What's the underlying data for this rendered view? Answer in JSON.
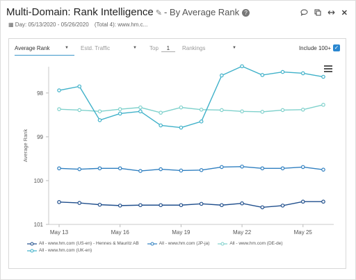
{
  "header": {
    "title": "Multi-Domain: Rank Intelligence",
    "subtitle": "- By Average Rank",
    "day_range": "Day: 05/13/2020 - 05/26/2020",
    "total_info": "(Total 4): www.hm.c..."
  },
  "icons": [
    "pencil-icon",
    "help-icon",
    "comment-icon",
    "copy-icon",
    "expand-icon",
    "close-icon",
    "calendar-icon",
    "chart-menu-icon",
    "checkbox-checked-icon"
  ],
  "controls": {
    "metric_select": "Average Rank",
    "secondary_select": "Estd. Traffic",
    "top_label": "Top",
    "top_value": "1",
    "rankings_select": "Rankings",
    "include_label": "Include 100+"
  },
  "colors": {
    "accent": "#3c97c9",
    "series_dark": "#1f4e8c",
    "series_mid": "#2f7fc0",
    "series_light": "#7fd1cc",
    "series_teal": "#3fb1c9"
  },
  "chart_data": {
    "type": "line",
    "title": "",
    "xlabel": "",
    "ylabel": "Average Rank",
    "x": [
      "May 13",
      "May 14",
      "May 15",
      "May 16",
      "May 17",
      "May 18",
      "May 19",
      "May 20",
      "May 21",
      "May 22",
      "May 23",
      "May 24",
      "May 25",
      "May 26"
    ],
    "x_tick_labels": [
      "May 13",
      "May 16",
      "May 19",
      "May 22",
      "May 25"
    ],
    "y_ticks": [
      98,
      99,
      100,
      101
    ],
    "ylim": [
      101,
      97.4
    ],
    "y_axis_inverted": true,
    "grid": false,
    "legend_position": "bottom",
    "series": [
      {
        "name": "All - www.hm.com (US-en) - Hennes & Mauritz AB",
        "color": "#1f4e8c",
        "values": [
          100.49,
          100.51,
          100.55,
          100.57,
          100.56,
          100.56,
          100.56,
          100.53,
          100.56,
          100.52,
          100.61,
          100.57,
          100.48,
          100.48
        ]
      },
      {
        "name": "All - www.hm.com (JP-ja)",
        "color": "#2f7fc0",
        "values": [
          99.72,
          99.74,
          99.72,
          99.72,
          99.78,
          99.74,
          99.77,
          99.76,
          99.69,
          99.68,
          99.72,
          99.72,
          99.69,
          99.75
        ]
      },
      {
        "name": "All - www.hm.com (DE-de)",
        "color": "#7fd1cc",
        "values": [
          98.37,
          98.39,
          98.42,
          98.37,
          98.33,
          98.45,
          98.33,
          98.38,
          98.39,
          98.42,
          98.43,
          98.39,
          98.38,
          98.27
        ]
      },
      {
        "name": "All - www.hm.com (UK-en)",
        "color": "#3fb1c9",
        "values": [
          97.94,
          97.85,
          98.62,
          98.47,
          98.42,
          98.74,
          98.79,
          98.65,
          97.6,
          97.39,
          97.59,
          97.52,
          97.55,
          97.63
        ]
      }
    ]
  }
}
